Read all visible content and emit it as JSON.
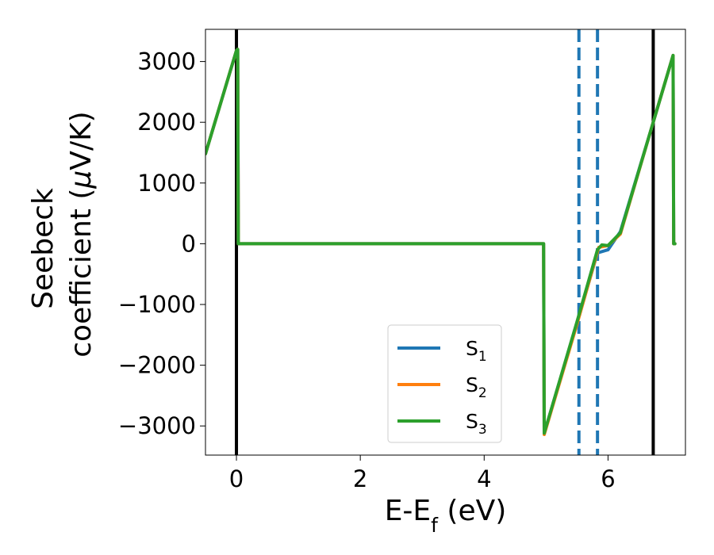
{
  "chart_data": {
    "type": "line",
    "xlabel": "E-E",
    "xlabel_sub": "f",
    "xlabel_unit": " (eV)",
    "ylabel_line1": "Seebeck",
    "ylabel_line2": "coefficient  (",
    "ylabel_mu": "μ",
    "ylabel_unit": "V/K)",
    "xlim": [
      -0.5,
      7.25
    ],
    "ylim": [
      -3480,
      3530
    ],
    "x_ticks": [
      0,
      2,
      4,
      6
    ],
    "x_tick_labels": [
      "0",
      "2",
      "4",
      "6"
    ],
    "y_ticks": [
      -3000,
      -2000,
      -1000,
      0,
      1000,
      2000,
      3000
    ],
    "y_tick_labels": [
      "−3000",
      "−2000",
      "−1000",
      "0",
      "1000",
      "2000",
      "3000"
    ],
    "grid": false,
    "legend_position": "lower-center",
    "vertical_lines": [
      {
        "x": 0.0,
        "style": "solid",
        "color": "#000000"
      },
      {
        "x": 6.73,
        "style": "solid",
        "color": "#000000"
      },
      {
        "x": 5.53,
        "style": "dashed",
        "color": "#1f77b4"
      },
      {
        "x": 5.83,
        "style": "dashed",
        "color": "#1f77b4"
      }
    ],
    "series": [
      {
        "name": "S",
        "sub": "1",
        "color": "#1f77b4",
        "x": [
          -0.5,
          0.0,
          0.02,
          0.03,
          0.04,
          4.96,
          4.97,
          5.5,
          5.83,
          6.0,
          6.2,
          6.73,
          7.05,
          7.06,
          7.08
        ],
        "y": [
          1480,
          3180,
          3200,
          0,
          0,
          0,
          -3120,
          -1300,
          -150,
          -100,
          200,
          2000,
          3100,
          0,
          0
        ]
      },
      {
        "name": "S",
        "sub": "2",
        "color": "#ff7f0e",
        "x": [
          -0.5,
          0.0,
          0.02,
          0.03,
          0.04,
          4.96,
          4.97,
          5.5,
          5.85,
          6.0,
          6.2,
          6.73,
          7.05,
          7.06,
          7.08
        ],
        "y": [
          1480,
          3180,
          3200,
          0,
          0,
          0,
          -3140,
          -1320,
          -60,
          -30,
          160,
          2000,
          3100,
          0,
          0
        ]
      },
      {
        "name": "S",
        "sub": "3",
        "color": "#2ca02c",
        "x": [
          -0.5,
          0.0,
          0.02,
          0.03,
          0.04,
          4.96,
          4.97,
          5.5,
          5.83,
          5.9,
          6.0,
          6.2,
          6.73,
          7.05,
          7.06,
          7.08
        ],
        "y": [
          1480,
          3180,
          3200,
          0,
          0,
          0,
          -3120,
          -1280,
          -100,
          -20,
          -30,
          180,
          2000,
          3100,
          0,
          0
        ]
      }
    ]
  }
}
